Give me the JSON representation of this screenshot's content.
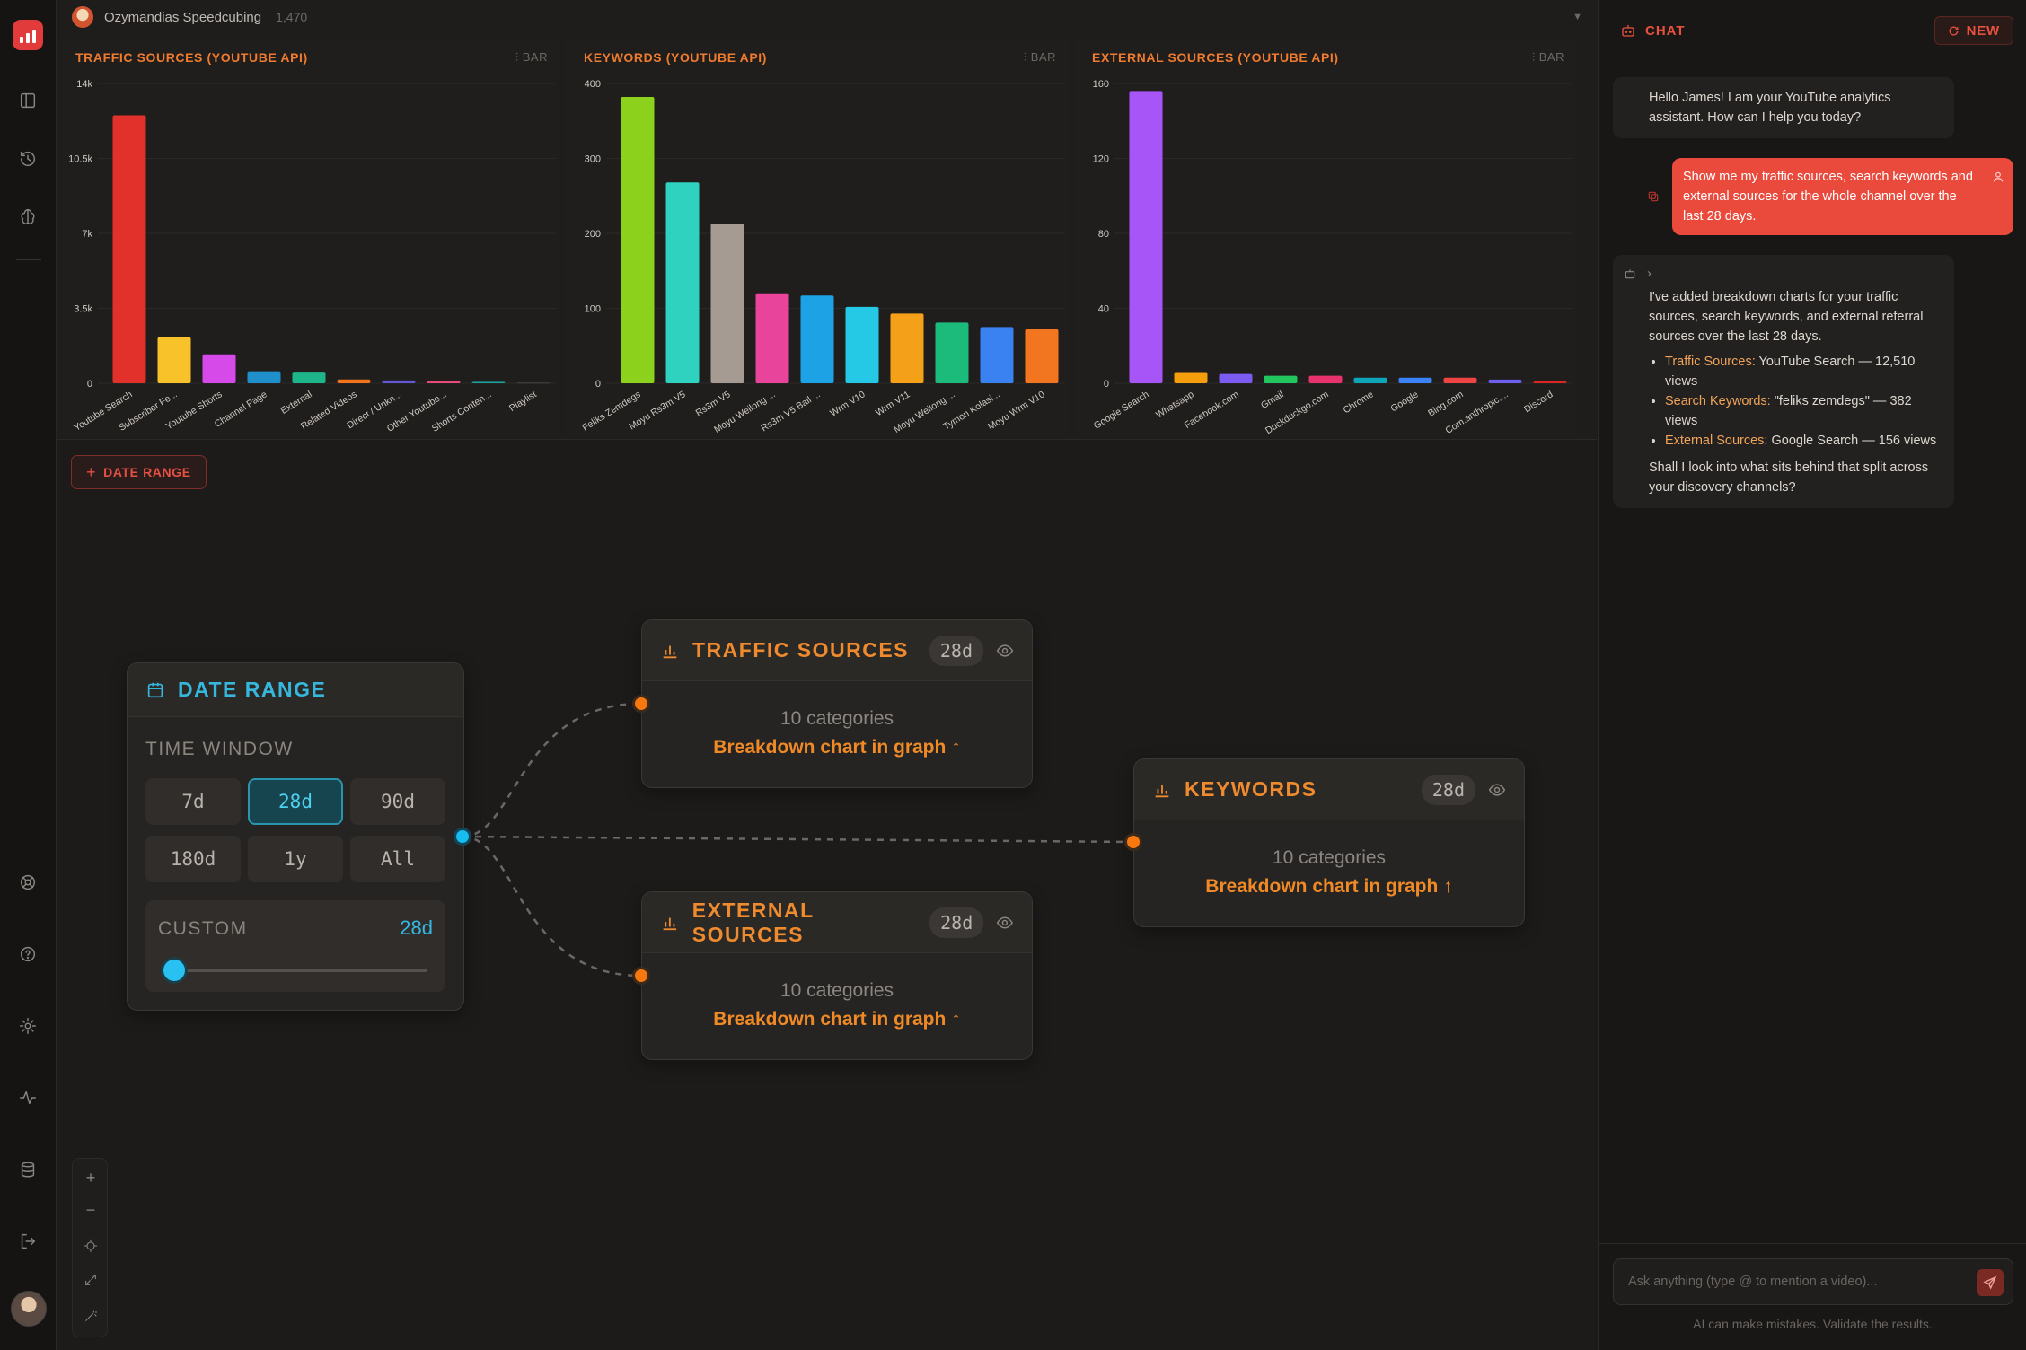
{
  "channel": {
    "name": "Ozymandias Speedcubing",
    "count": "1,470"
  },
  "charts": [
    {
      "title": "TRAFFIC SOURCES (YOUTUBE API)",
      "type_label": "BAR",
      "ticks": [
        "14k",
        "10.5k",
        "7k",
        "3.5k",
        "0"
      ],
      "tick_values": [
        14000,
        10500,
        7000,
        3500,
        0
      ]
    },
    {
      "title": "KEYWORDS (YOUTUBE API)",
      "type_label": "BAR",
      "ticks": [
        "400",
        "300",
        "200",
        "100",
        "0"
      ],
      "tick_values": [
        400,
        300,
        200,
        100,
        0
      ]
    },
    {
      "title": "EXTERNAL SOURCES (YOUTUBE API)",
      "type_label": "BAR",
      "ticks": [
        "160",
        "120",
        "80",
        "40",
        "0"
      ],
      "tick_values": [
        160,
        120,
        80,
        40,
        0
      ]
    }
  ],
  "chart_data": [
    {
      "type": "bar",
      "title": "TRAFFIC SOURCES (YOUTUBE API)",
      "categories": [
        "Youtube Search",
        "Subscriber Fe...",
        "Youtube Shorts",
        "Channel Page",
        "External",
        "Related Videos",
        "Direct / Unkn...",
        "Other Youtube...",
        "Shorts Conten...",
        "Playlist"
      ],
      "values": [
        12510,
        2150,
        1350,
        560,
        540,
        180,
        130,
        110,
        70,
        40
      ],
      "colors": [
        "#e2302b",
        "#f7c22a",
        "#d64aea",
        "#1f8fcb",
        "#1fb58a",
        "#f2731e",
        "#6257d8",
        "#e84a79",
        "#1b9f9a",
        "#3a3a3a"
      ],
      "ylim": [
        0,
        14000
      ]
    },
    {
      "type": "bar",
      "title": "KEYWORDS (YOUTUBE API)",
      "categories": [
        "Feliks Zemdegs",
        "Moyu Rs3m V5",
        "Rs3m V5",
        "Moyu Weilong ...",
        "Rs3m V5 Ball ...",
        "Wrm V10",
        "Wrm V11",
        "Moyu Weilong ...",
        "Tymon Kolasi...",
        "Moyu Wrm V10"
      ],
      "values": [
        382,
        268,
        213,
        120,
        117,
        102,
        93,
        81,
        75,
        72
      ],
      "colors": [
        "#8cd21c",
        "#2ed2bf",
        "#a59b92",
        "#e9449c",
        "#1da3e5",
        "#25c9e6",
        "#f4a019",
        "#1cbb7c",
        "#3a82f1",
        "#f27520"
      ],
      "ylim": [
        0,
        400
      ]
    },
    {
      "type": "bar",
      "title": "EXTERNAL SOURCES (YOUTUBE API)",
      "categories": [
        "Google Search",
        "Whatsapp",
        "Facebook.com",
        "Gmail",
        "Duckduckgo.com",
        "Chrome",
        "Google",
        "Bing.com",
        "Com.anthropic....",
        "Discord"
      ],
      "values": [
        156,
        6,
        5,
        4,
        4,
        3,
        3,
        3,
        2,
        1
      ],
      "colors": [
        "#a855f7",
        "#f59e0b",
        "#7c5cf0",
        "#22c55e",
        "#e6336d",
        "#0ea5b9",
        "#3b82f6",
        "#ef4444",
        "#6d5ef0",
        "#dc2626"
      ],
      "ylim": [
        0,
        160
      ]
    }
  ],
  "canvas": {
    "add_button": "DATE RANGE",
    "date_range": {
      "title": "DATE RANGE",
      "time_window_label": "TIME WINDOW",
      "options": [
        "7d",
        "28d",
        "90d",
        "180d",
        "1y",
        "All"
      ],
      "selected": "28d",
      "custom_label": "CUSTOM",
      "custom_value": "28d",
      "slider_fraction": 0.0
    },
    "nodes": [
      {
        "title": "TRAFFIC SOURCES",
        "badge": "28d",
        "categories": "10 categories",
        "link": "Breakdown chart in graph ↑"
      },
      {
        "title": "EXTERNAL SOURCES",
        "badge": "28d",
        "categories": "10 categories",
        "link": "Breakdown chart in graph ↑"
      },
      {
        "title": "KEYWORDS",
        "badge": "28d",
        "categories": "10 categories",
        "link": "Breakdown chart in graph ↑"
      }
    ],
    "controls": [
      "+",
      "−"
    ]
  },
  "chat": {
    "title": "CHAT",
    "new_label": "NEW",
    "greeting": "Hello James! I am your YouTube analytics assistant. How can I help you today?",
    "user_msg": "Show me my traffic sources, search keywords and external sources for the whole channel over the last 28 days.",
    "reply_toggle": "›",
    "reply_intro": "I've added breakdown charts for your traffic sources, search keywords, and external referral sources over the last 28 days.",
    "reply_items": [
      {
        "label": "Traffic Sources:",
        "text": "YouTube Search — 12,510 views"
      },
      {
        "label": "Search Keywords:",
        "text": "\"feliks zemdegs\" — 382 views"
      },
      {
        "label": "External Sources:",
        "text": "Google Search — 156 views"
      }
    ],
    "reply_outro": "Shall I look into what sits behind that split across your discovery channels?",
    "input_placeholder": "Ask anything (type @ to mention a video)...",
    "disclaimer": "AI can make mistakes. Validate the results."
  },
  "colors": {
    "accent": "#ef7b2e",
    "brand": "#e23b3b",
    "cyan": "#15bdf0"
  }
}
